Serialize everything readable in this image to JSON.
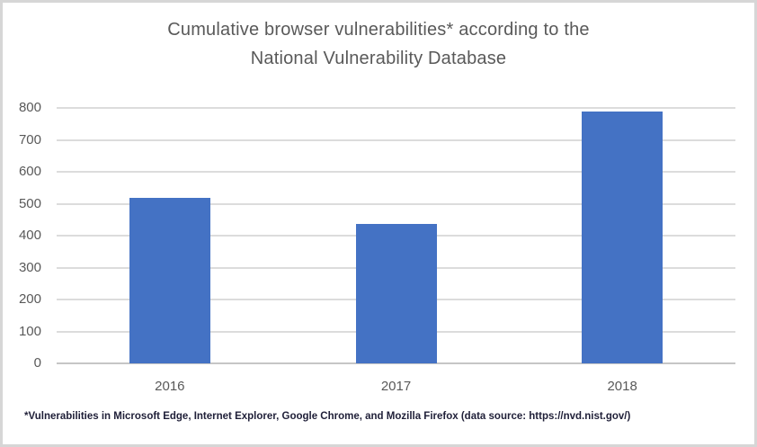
{
  "window": {
    "background_color": "#ffffff",
    "border_color": "#d6d6d6"
  },
  "chart_data": {
    "type": "bar",
    "title": "Cumulative browser vulnerabilities* according to the National Vulnerability Database",
    "title_lines": [
      "Cumulative browser vulnerabilities* according to the",
      "National Vulnerability Database"
    ],
    "categories": [
      "2016",
      "2017",
      "2018"
    ],
    "values": [
      517,
      437,
      790
    ],
    "xlabel": "",
    "ylabel": "",
    "ylim": [
      0,
      800
    ],
    "yticks": [
      0,
      100,
      200,
      300,
      400,
      500,
      600,
      700,
      800
    ],
    "grid": true,
    "legend": false,
    "bar_color": "#4472c4",
    "gridline_color": "#dcdcdc",
    "axis_line_color": "#c6c6c6",
    "text_color": "#595959"
  },
  "footnote": {
    "text": "*Vulnerabilities in Microsoft Edge, Internet Explorer, Google Chrome, and Mozilla Firefox (data source: https://nvd.nist.gov/)"
  }
}
